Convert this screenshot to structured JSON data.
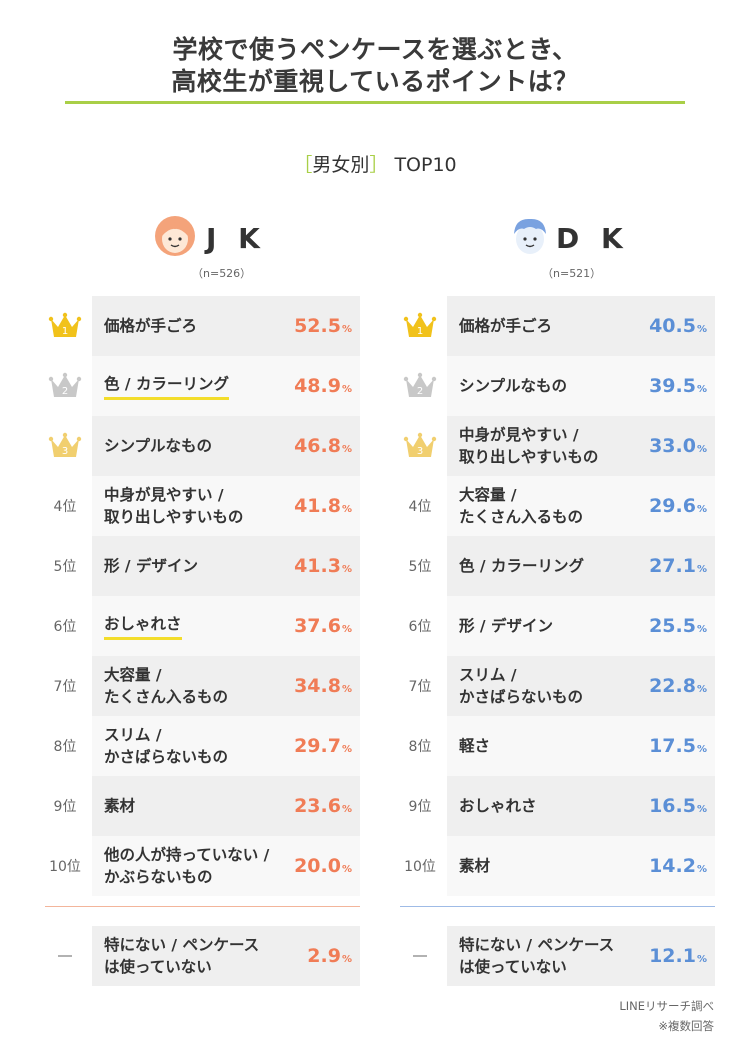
{
  "title": {
    "line1": "学校で使うペンケースを選ぶとき、",
    "line2": "高校生が重視しているポイントは？"
  },
  "section": {
    "open": "［",
    "label": "男女別",
    "close": "］",
    "suffix": "TOP10"
  },
  "colors": {
    "accent_green": "#a9cf47",
    "jk_orange": "#f07c56",
    "dk_blue": "#5b8fd6",
    "gold": "#f1c21b",
    "silver": "#c8c8c8",
    "bronze": "#f1cf6f",
    "highlight_yellow": "#f3dd2b"
  },
  "groups": [
    {
      "id": "jk",
      "label": "J K",
      "icon": "girl-face-icon",
      "sample": "（n=526）",
      "rows": [
        {
          "rank": "1",
          "label": "価格が手ごろ",
          "value": 52.5,
          "value_text": "52.5",
          "unit": "%",
          "underline": false
        },
        {
          "rank": "2",
          "label": "色 / カラーリング",
          "value": 48.9,
          "value_text": "48.9",
          "unit": "%",
          "underline": true
        },
        {
          "rank": "3",
          "label": "シンプルなもの",
          "value": 46.8,
          "value_text": "46.8",
          "unit": "%",
          "underline": false
        },
        {
          "rank": "4位",
          "label": "中身が見やすい /\n取り出しやすいもの",
          "value": 41.8,
          "value_text": "41.8",
          "unit": "%",
          "underline": false
        },
        {
          "rank": "5位",
          "label": "形 / デザイン",
          "value": 41.3,
          "value_text": "41.3",
          "unit": "%",
          "underline": false
        },
        {
          "rank": "6位",
          "label": "おしゃれさ",
          "value": 37.6,
          "value_text": "37.6",
          "unit": "%",
          "underline": true
        },
        {
          "rank": "7位",
          "label": "大容量 /\nたくさん入るもの",
          "value": 34.8,
          "value_text": "34.8",
          "unit": "%",
          "underline": false
        },
        {
          "rank": "8位",
          "label": "スリム /\nかさばらないもの",
          "value": 29.7,
          "value_text": "29.7",
          "unit": "%",
          "underline": false
        },
        {
          "rank": "9位",
          "label": "素材",
          "value": 23.6,
          "value_text": "23.6",
          "unit": "%",
          "underline": false
        },
        {
          "rank": "10位",
          "label": "他の人が持っていない /\nかぶらないもの",
          "value": 20.0,
          "value_text": "20.0",
          "unit": "%",
          "underline": false
        },
        {
          "rank": "―",
          "label": "特にない / ペンケース\nは使っていない",
          "value": 2.9,
          "value_text": "2.9",
          "unit": "%",
          "underline": false
        }
      ]
    },
    {
      "id": "dk",
      "label": "D K",
      "icon": "boy-face-icon",
      "sample": "（n=521）",
      "rows": [
        {
          "rank": "1",
          "label": "価格が手ごろ",
          "value": 40.5,
          "value_text": "40.5",
          "unit": "%",
          "underline": false
        },
        {
          "rank": "2",
          "label": "シンプルなもの",
          "value": 39.5,
          "value_text": "39.5",
          "unit": "%",
          "underline": false
        },
        {
          "rank": "3",
          "label": "中身が見やすい /\n取り出しやすいもの",
          "value": 33.0,
          "value_text": "33.0",
          "unit": "%",
          "underline": false
        },
        {
          "rank": "4位",
          "label": "大容量 /\nたくさん入るもの",
          "value": 29.6,
          "value_text": "29.6",
          "unit": "%",
          "underline": false
        },
        {
          "rank": "5位",
          "label": "色 / カラーリング",
          "value": 27.1,
          "value_text": "27.1",
          "unit": "%",
          "underline": false
        },
        {
          "rank": "6位",
          "label": "形 / デザイン",
          "value": 25.5,
          "value_text": "25.5",
          "unit": "%",
          "underline": false
        },
        {
          "rank": "7位",
          "label": "スリム /\nかさばらないもの",
          "value": 22.8,
          "value_text": "22.8",
          "unit": "%",
          "underline": false
        },
        {
          "rank": "8位",
          "label": "軽さ",
          "value": 17.5,
          "value_text": "17.5",
          "unit": "%",
          "underline": false
        },
        {
          "rank": "9位",
          "label": "おしゃれさ",
          "value": 16.5,
          "value_text": "16.5",
          "unit": "%",
          "underline": false
        },
        {
          "rank": "10位",
          "label": "素材",
          "value": 14.2,
          "value_text": "14.2",
          "unit": "%",
          "underline": false
        },
        {
          "rank": "―",
          "label": "特にない / ペンケース\nは使っていない",
          "value": 12.1,
          "value_text": "12.1",
          "unit": "%",
          "underline": false
        }
      ]
    }
  ],
  "chart_data": [
    {
      "type": "table",
      "title": "J K",
      "sample": "（n=526）",
      "categories": [
        "価格が手ごろ",
        "色 / カラーリング",
        "シンプルなもの",
        "中身が見やすい / 取り出しやすいもの",
        "形 / デザイン",
        "おしゃれさ",
        "大容量 / たくさん入るもの",
        "スリム / かさばらないもの",
        "素材",
        "他の人が持っていない / かぶらないもの",
        "特にない / ペンケースは使っていない"
      ],
      "values": [
        52.5,
        48.9,
        46.8,
        41.8,
        41.3,
        37.6,
        34.8,
        29.7,
        23.6,
        20.0,
        2.9
      ],
      "unit": "%"
    },
    {
      "type": "table",
      "title": "D K",
      "sample": "（n=521）",
      "categories": [
        "価格が手ごろ",
        "シンプルなもの",
        "中身が見やすい / 取り出しやすいもの",
        "大容量 / たくさん入るもの",
        "色 / カラーリング",
        "形 / デザイン",
        "スリム / かさばらないもの",
        "軽さ",
        "おしゃれさ",
        "素材",
        "特にない / ペンケースは使っていない"
      ],
      "values": [
        40.5,
        39.5,
        33.0,
        29.6,
        27.1,
        25.5,
        22.8,
        17.5,
        16.5,
        14.2,
        12.1
      ],
      "unit": "%"
    }
  ],
  "footer": {
    "source": "LINEリサーチ調べ",
    "note": "※複数回答"
  }
}
